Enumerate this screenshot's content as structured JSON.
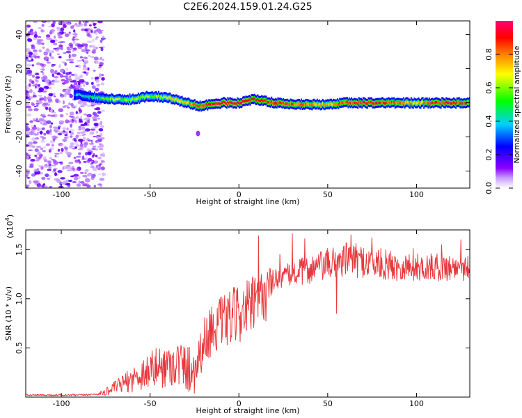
{
  "figure": {
    "title": "C2E6.2024.159.01.24.G25"
  },
  "chart_data": [
    {
      "type": "heatmap",
      "title": "",
      "xlabel": "Height of straight line (km)",
      "ylabel": "Frequency (Hz)",
      "xlim": [
        -120,
        130
      ],
      "ylim": [
        -50,
        48
      ],
      "x_ticks": [
        -100,
        -50,
        0,
        50,
        100
      ],
      "y_ticks": [
        -40,
        -20,
        0,
        20,
        40
      ],
      "colorbar": {
        "label": "Normalized spectral amplitude",
        "range": [
          0,
          1
        ],
        "ticks": [
          "0.0",
          "0.2",
          "0.4",
          "0.6",
          "0.8"
        ],
        "colors": [
          "#ffffff",
          "#8a00ff",
          "#0000ff",
          "#00d0ff",
          "#00ff00",
          "#ffff00",
          "#ff8000",
          "#ff0000",
          "#ff0070"
        ]
      },
      "noise_region": {
        "x_from": -120,
        "x_to": -80,
        "amplitude": "low (0.1-0.3)"
      },
      "ridge": [
        {
          "x": -93,
          "freq": 5,
          "amp": 0.35
        },
        {
          "x": -80,
          "freq": 3,
          "amp": 0.5
        },
        {
          "x": -70,
          "freq": 2,
          "amp": 0.6
        },
        {
          "x": -60,
          "freq": 2,
          "amp": 0.6
        },
        {
          "x": -50,
          "freq": 4,
          "amp": 0.6
        },
        {
          "x": -40,
          "freq": 3,
          "amp": 0.65
        },
        {
          "x": -30,
          "freq": 0,
          "amp": 0.75
        },
        {
          "x": -22,
          "freq": -2,
          "amp": 0.85
        },
        {
          "x": -10,
          "freq": 0,
          "amp": 0.95
        },
        {
          "x": 0,
          "freq": 0,
          "amp": 0.95
        },
        {
          "x": 8,
          "freq": 2,
          "amp": 0.9
        },
        {
          "x": 20,
          "freq": 0,
          "amp": 0.9
        },
        {
          "x": 35,
          "freq": -1,
          "amp": 0.8
        },
        {
          "x": 50,
          "freq": -1,
          "amp": 0.75
        },
        {
          "x": 60,
          "freq": 0,
          "amp": 0.85
        },
        {
          "x": 75,
          "freq": 0,
          "amp": 0.9
        },
        {
          "x": 90,
          "freq": 0,
          "amp": 0.8
        },
        {
          "x": 100,
          "freq": 0,
          "amp": 0.7
        },
        {
          "x": 110,
          "freq": 0,
          "amp": 0.9
        },
        {
          "x": 125,
          "freq": 0,
          "amp": 0.85
        }
      ]
    },
    {
      "type": "line",
      "title": "",
      "xlabel": "Height of straight line (km)",
      "ylabel": "SNR (10 * v/v)",
      "y_scale_note": "(x10",
      "y_scale_exp": "4",
      "y_scale_close": ")",
      "xlim": [
        -120,
        130
      ],
      "ylim": [
        0,
        1.7
      ],
      "x_ticks": [
        -100,
        -50,
        0,
        50,
        100
      ],
      "y_ticks": [
        0.5,
        1.0,
        1.5
      ],
      "y_tick_labels": [
        "0.5",
        "1.0",
        "1.5"
      ],
      "series": [
        {
          "color": "#e8383d",
          "trend": [
            [
              -120,
              0.02
            ],
            [
              -100,
              0.02
            ],
            [
              -90,
              0.02
            ],
            [
              -80,
              0.03
            ],
            [
              -75,
              0.05
            ],
            [
              -70,
              0.1
            ],
            [
              -60,
              0.18
            ],
            [
              -50,
              0.28
            ],
            [
              -45,
              0.3
            ],
            [
              -40,
              0.32
            ],
            [
              -35,
              0.35
            ],
            [
              -30,
              0.3
            ],
            [
              -25,
              0.28
            ],
            [
              -20,
              0.55
            ],
            [
              -15,
              0.7
            ],
            [
              -10,
              0.75
            ],
            [
              -5,
              0.8
            ],
            [
              0,
              0.85
            ],
            [
              5,
              0.9
            ],
            [
              10,
              0.95
            ],
            [
              15,
              1.05
            ],
            [
              20,
              1.2
            ],
            [
              30,
              1.25
            ],
            [
              40,
              1.3
            ],
            [
              50,
              1.35
            ],
            [
              60,
              1.4
            ],
            [
              70,
              1.38
            ],
            [
              80,
              1.35
            ],
            [
              90,
              1.33
            ],
            [
              100,
              1.32
            ],
            [
              110,
              1.32
            ],
            [
              120,
              1.32
            ],
            [
              130,
              1.32
            ]
          ],
          "noise_scale": [
            [
              -120,
              0.01
            ],
            [
              -80,
              0.01
            ],
            [
              -70,
              0.06
            ],
            [
              -50,
              0.2
            ],
            [
              -30,
              0.25
            ],
            [
              -20,
              0.25
            ],
            [
              0,
              0.3
            ],
            [
              15,
              0.3
            ],
            [
              20,
              0.1
            ],
            [
              40,
              0.15
            ],
            [
              60,
              0.18
            ],
            [
              100,
              0.14
            ],
            [
              130,
              0.14
            ]
          ],
          "spikes": [
            [
              11,
              1.64
            ],
            [
              16,
              1.27
            ],
            [
              23,
              1.45
            ],
            [
              30,
              1.66
            ],
            [
              37,
              1.61
            ],
            [
              55,
              0.85
            ],
            [
              63,
              1.65
            ],
            [
              75,
              1.62
            ],
            [
              98,
              1.51
            ],
            [
              114,
              1.55
            ],
            [
              125,
              1.6
            ]
          ]
        }
      ]
    }
  ]
}
